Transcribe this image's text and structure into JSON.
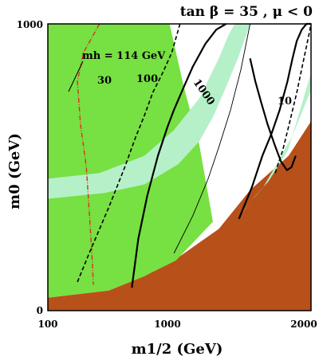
{
  "chart_data": {
    "type": "contour",
    "title": "tan β = 35 ,  μ < 0",
    "xlabel": "m1/2 (GeV)",
    "ylabel": "m0 (GeV)",
    "xlim": [
      100,
      2000
    ],
    "ylim": [
      0,
      1000
    ],
    "xticks": [
      "100",
      "1000",
      "2000"
    ],
    "yticks": [
      "0",
      "1000"
    ],
    "higgs_contour_label": "mh = 114 GeV",
    "contour_labels": [
      "30",
      "100",
      "1000",
      "10"
    ],
    "colors": {
      "excluded_stau_lsp": "#b8501a",
      "green_region": "#77e043",
      "light_band": "#b5f0c8",
      "higgs_line": "#e0301e",
      "contour": "#000000"
    },
    "regions": [
      {
        "name": "stau LSP excluded (brown)",
        "polygon": [
          [
            100,
            0
          ],
          [
            2000,
            0
          ],
          [
            2000,
            660
          ],
          [
            1550,
            540
          ],
          [
            1000,
            420
          ],
          [
            700,
            285
          ],
          [
            430,
            180
          ],
          [
            300,
            120
          ],
          [
            200,
            70
          ],
          [
            100,
            45
          ]
        ]
      },
      {
        "name": "green",
        "polygon": [
          [
            100,
            1000
          ],
          [
            400,
            1000
          ],
          [
            470,
            780
          ],
          [
            560,
            580
          ],
          [
            655,
            310
          ],
          [
            430,
            175
          ],
          [
            300,
            120
          ],
          [
            200,
            70
          ],
          [
            100,
            45
          ]
        ]
      },
      {
        "name": "light band upper",
        "polygon": [
          [
            100,
            460
          ],
          [
            180,
            480
          ],
          [
            300,
            540
          ],
          [
            420,
            630
          ],
          [
            560,
            740
          ],
          [
            700,
            880
          ],
          [
            780,
            960
          ],
          [
            840,
            1000
          ],
          [
            1000,
            1000
          ],
          [
            870,
            880
          ],
          [
            760,
            780
          ],
          [
            660,
            680
          ],
          [
            560,
            590
          ],
          [
            440,
            510
          ],
          [
            300,
            440
          ],
          [
            190,
            410
          ],
          [
            100,
            390
          ]
        ]
      },
      {
        "name": "light band lower",
        "polygon": [
          [
            920,
            345
          ],
          [
            1060,
            400
          ],
          [
            1230,
            450
          ],
          [
            1380,
            505
          ],
          [
            1540,
            560
          ],
          [
            1800,
            720
          ],
          [
            2000,
            830
          ],
          [
            2000,
            770
          ],
          [
            1800,
            690
          ],
          [
            1620,
            610
          ],
          [
            1460,
            555
          ],
          [
            1300,
            490
          ],
          [
            1160,
            430
          ],
          [
            1020,
            385
          ],
          [
            900,
            335
          ]
        ]
      }
    ],
    "series": [
      {
        "name": "",
        "style": "red-dashdot",
        "x": [
          180,
          150,
          140,
          145,
          155,
          160,
          165,
          168
        ],
        "y": [
          1000,
          900,
          800,
          650,
          500,
          350,
          200,
          90
        ]
      },
      {
        "name": "",
        "style": "solid-thick",
        "x": [
          260,
          280,
          310,
          350,
          390,
          420,
          470,
          520,
          600,
          680,
          760
        ],
        "y": [
          80,
          250,
          400,
          540,
          640,
          700,
          780,
          850,
          930,
          980,
          1000
        ]
      },
      {
        "name": "",
        "style": "dashed",
        "x": [
          140,
          160,
          200,
          240,
          270,
          300,
          330,
          370,
          410,
          450
        ],
        "y": [
          100,
          200,
          360,
          500,
          600,
          680,
          760,
          830,
          900,
          1000
        ]
      },
      {
        "name": "",
        "style": "solid-thin",
        "x": [
          420,
          520,
          620,
          700,
          800,
          900,
          1000
        ],
        "y": [
          200,
          330,
          460,
          570,
          700,
          840,
          1000
        ]
      },
      {
        "name": "",
        "style": "solid-thick",
        "x": [
          880,
          1020,
          1150,
          1280,
          1400,
          1530,
          1620,
          1700,
          1800,
          1900,
          2000
        ],
        "y": [
          320,
          430,
          540,
          620,
          700,
          800,
          880,
          940,
          980,
          1000,
          1000
        ]
      },
      {
        "name": "",
        "style": "dashed",
        "x": [
          1330,
          1450,
          1560,
          1700,
          1820,
          1950,
          2000
        ],
        "y": [
          480,
          560,
          650,
          760,
          860,
          960,
          1000
        ]
      },
      {
        "name": "",
        "style": "solid-thick",
        "x": [
          1000,
          1060,
          1130,
          1220,
          1320,
          1420,
          1520,
          1600,
          1680
        ],
        "y": [
          880,
          800,
          730,
          650,
          580,
          520,
          490,
          500,
          540
        ]
      }
    ]
  }
}
